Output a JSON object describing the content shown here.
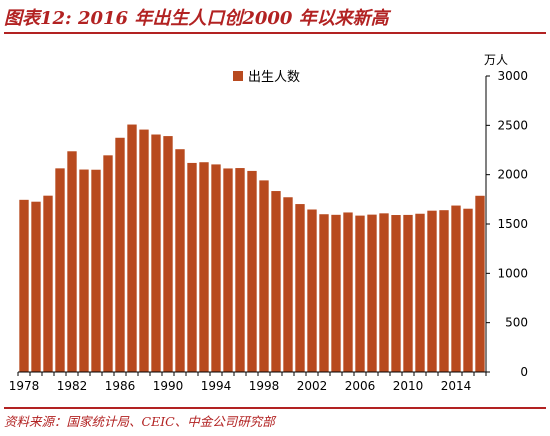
{
  "title": "图表12: 2016 年出生人口创2000 年以来新高",
  "source": "资料来源：国家统计局、CEIC、中金公司研究部",
  "colors": {
    "bar": "#b84a1f",
    "accent": "#b22222"
  },
  "chart_data": {
    "type": "bar",
    "title": "",
    "xlabel": "",
    "ylabel": "万人",
    "ylim": [
      0,
      3000
    ],
    "yticks": [
      0,
      500,
      1000,
      1500,
      2000,
      2500,
      3000
    ],
    "xtick_labels": [
      "1978",
      "1982",
      "1986",
      "1990",
      "1994",
      "1998",
      "2002",
      "2006",
      "2010",
      "2014"
    ],
    "legend": {
      "position": "top",
      "entries": [
        "出生人数"
      ]
    },
    "grid": false,
    "y_axis_side": "right",
    "categories": [
      "1978",
      "1979",
      "1980",
      "1981",
      "1982",
      "1983",
      "1984",
      "1985",
      "1986",
      "1987",
      "1988",
      "1989",
      "1990",
      "1991",
      "1992",
      "1993",
      "1994",
      "1995",
      "1996",
      "1997",
      "1998",
      "1999",
      "2000",
      "2001",
      "2002",
      "2003",
      "2004",
      "2005",
      "2006",
      "2007",
      "2008",
      "2009",
      "2010",
      "2011",
      "2012",
      "2013",
      "2014",
      "2015",
      "2016"
    ],
    "series": [
      {
        "name": "出生人数",
        "values": [
          1745,
          1726,
          1787,
          2064,
          2237,
          2052,
          2050,
          2196,
          2374,
          2508,
          2457,
          2407,
          2391,
          2258,
          2119,
          2126,
          2104,
          2063,
          2067,
          2038,
          1942,
          1834,
          1771,
          1702,
          1647,
          1599,
          1593,
          1617,
          1585,
          1595,
          1608,
          1591,
          1592,
          1604,
          1635,
          1640,
          1687,
          1655,
          1786
        ]
      }
    ]
  }
}
